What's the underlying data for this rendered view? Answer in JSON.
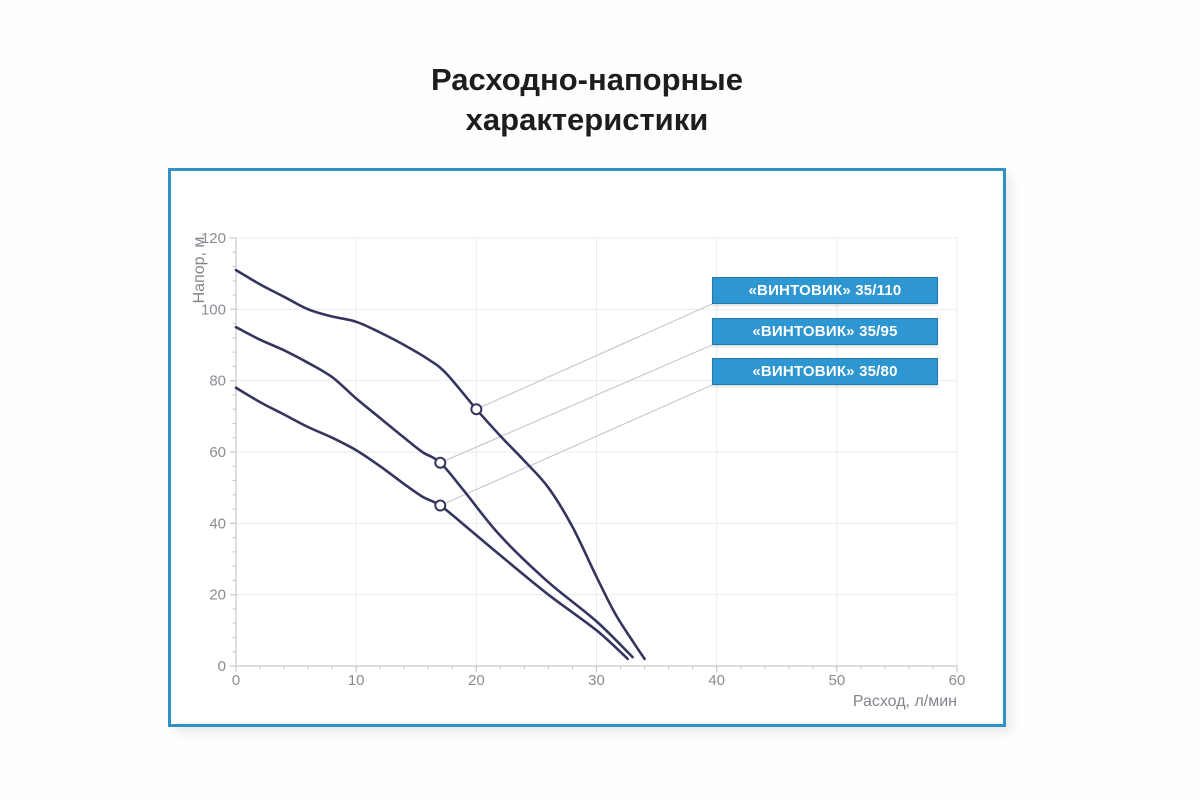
{
  "title": {
    "line1": "Расходно-напорные",
    "line2": "характеристики"
  },
  "chart_data": {
    "type": "line",
    "title": "Расходно-напорные характеристики",
    "xlabel": "Расход, л/мин",
    "ylabel": "Напор, м",
    "xlim": [
      0,
      60
    ],
    "ylim": [
      0,
      120
    ],
    "x_ticks": [
      0,
      10,
      20,
      30,
      40,
      50,
      60
    ],
    "y_ticks": [
      0,
      20,
      40,
      60,
      80,
      100,
      120
    ],
    "x_minor_step": 2,
    "y_minor_step": 4,
    "grid": true,
    "legend_position": "callout boxes at right, linked to curves by leader lines",
    "series": [
      {
        "name": "«ВИНТОВИК» 35/110",
        "points": [
          [
            0,
            111
          ],
          [
            2,
            107
          ],
          [
            4,
            103.5
          ],
          [
            6,
            100
          ],
          [
            8,
            98
          ],
          [
            10,
            96.5
          ],
          [
            12,
            93.5
          ],
          [
            14,
            90
          ],
          [
            16,
            86
          ],
          [
            17.5,
            82
          ],
          [
            20,
            72
          ],
          [
            22,
            64.5
          ],
          [
            24,
            57.5
          ],
          [
            26,
            50
          ],
          [
            28,
            39
          ],
          [
            30,
            25
          ],
          [
            31.5,
            15
          ],
          [
            33,
            7
          ],
          [
            34,
            2
          ]
        ],
        "marker_point": [
          20,
          72
        ]
      },
      {
        "name": "«ВИНТОВИК» 35/95",
        "points": [
          [
            0,
            95
          ],
          [
            2,
            91.5
          ],
          [
            4,
            88.5
          ],
          [
            6,
            85
          ],
          [
            8,
            81
          ],
          [
            10,
            75
          ],
          [
            12,
            69.5
          ],
          [
            14,
            64
          ],
          [
            15.5,
            60
          ],
          [
            17,
            57
          ],
          [
            19,
            49
          ],
          [
            22,
            36.5
          ],
          [
            26,
            23.5
          ],
          [
            30,
            12.5
          ],
          [
            33,
            2.5
          ]
        ],
        "marker_point": [
          17,
          57
        ]
      },
      {
        "name": "«ВИНТОВИК» 35/80",
        "points": [
          [
            0,
            78
          ],
          [
            2,
            74
          ],
          [
            4,
            70.5
          ],
          [
            6,
            67
          ],
          [
            8,
            64
          ],
          [
            10,
            60.5
          ],
          [
            12,
            56
          ],
          [
            14,
            51
          ],
          [
            15.5,
            47.5
          ],
          [
            17,
            45
          ],
          [
            19,
            39.5
          ],
          [
            22,
            31
          ],
          [
            26,
            20
          ],
          [
            30,
            10
          ],
          [
            32.6,
            2
          ]
        ],
        "marker_point": [
          17,
          45
        ]
      }
    ],
    "colors": {
      "curve": "#35355f",
      "grid": "#ebebf1",
      "axis": "#c7c7d0",
      "tick_text": "#8b8b93",
      "leader_line": "#c9c9cf",
      "callout_fill": "#2e96d1",
      "callout_border": "#227aac",
      "callout_text": "#ffffff",
      "panel_border": "#2f92c2"
    }
  }
}
